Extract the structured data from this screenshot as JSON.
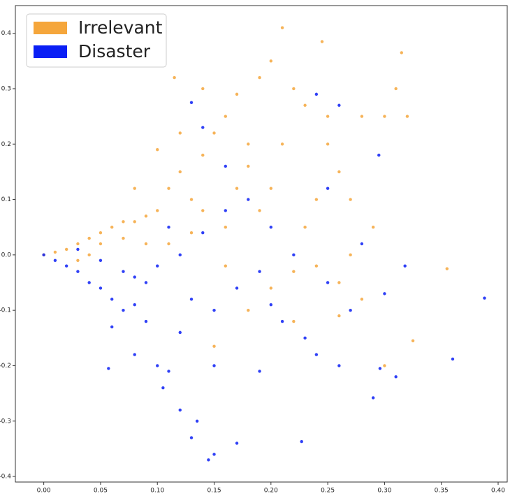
{
  "chart_data": {
    "type": "scatter",
    "xlim": [
      -0.025,
      0.408
    ],
    "ylim": [
      -0.41,
      0.45
    ],
    "xticks": [
      {
        "value": 0,
        "label": "0.00"
      },
      0.05,
      {
        "value": 0.1,
        "label": "0.10"
      },
      0.15,
      {
        "value": 0.2,
        "label": "0.20"
      },
      0.25,
      {
        "value": 0.3,
        "label": "0.30"
      },
      0.35,
      {
        "value": 0.4,
        "label": "0.40"
      }
    ],
    "yticks": [
      -0.4,
      -0.3,
      -0.2,
      -0.1,
      {
        "value": 0,
        "label": "0.0"
      },
      0.1,
      0.2,
      0.3,
      0.4
    ],
    "legend": "upper-left",
    "series": [
      {
        "name": "Irrelevant",
        "color": "#f5a63b",
        "x": [
          0.0,
          0.01,
          0.02,
          0.03,
          0.04,
          0.05,
          0.06,
          0.07,
          0.08,
          0.09,
          0.1,
          0.11,
          0.12,
          0.13,
          0.14,
          0.15,
          0.16,
          0.17,
          0.18,
          0.19,
          0.2,
          0.21,
          0.22,
          0.23,
          0.245,
          0.25,
          0.26,
          0.27,
          0.28,
          0.3,
          0.31,
          0.315,
          0.32,
          0.115,
          0.14,
          0.16,
          0.18,
          0.2,
          0.22,
          0.24,
          0.26,
          0.28,
          0.3,
          0.325,
          0.355,
          0.29,
          0.27,
          0.23,
          0.19,
          0.17,
          0.13,
          0.11,
          0.09,
          0.07,
          0.05,
          0.04,
          0.03,
          0.15,
          0.18,
          0.21,
          0.25,
          0.12,
          0.1,
          0.08,
          0.16,
          0.2,
          0.24,
          0.26,
          0.14,
          0.22
        ],
        "values": [
          0.0,
          0.005,
          0.01,
          0.02,
          0.03,
          0.04,
          0.05,
          0.03,
          0.06,
          0.02,
          0.08,
          0.12,
          0.15,
          0.1,
          0.18,
          0.22,
          0.25,
          0.29,
          0.2,
          0.32,
          0.35,
          0.41,
          0.3,
          0.27,
          0.385,
          0.25,
          0.15,
          0.1,
          0.25,
          0.25,
          0.3,
          0.365,
          0.25,
          0.32,
          0.3,
          -0.02,
          -0.1,
          -0.06,
          -0.03,
          -0.02,
          -0.05,
          -0.08,
          -0.2,
          -0.155,
          -0.025,
          0.05,
          0.0,
          0.05,
          0.08,
          0.12,
          0.04,
          0.02,
          0.07,
          0.06,
          0.02,
          0.0,
          -0.01,
          -0.165,
          0.16,
          0.2,
          0.2,
          0.22,
          0.19,
          0.12,
          0.05,
          0.12,
          0.1,
          -0.11,
          0.08,
          -0.12
        ]
      },
      {
        "name": "Disaster",
        "color": "#0a1ff5",
        "x": [
          0.0,
          0.01,
          0.02,
          0.03,
          0.04,
          0.05,
          0.06,
          0.07,
          0.08,
          0.09,
          0.1,
          0.105,
          0.11,
          0.12,
          0.13,
          0.135,
          0.145,
          0.15,
          0.17,
          0.19,
          0.227,
          0.24,
          0.26,
          0.29,
          0.296,
          0.31,
          0.36,
          0.388,
          0.318,
          0.295,
          0.24,
          0.26,
          0.13,
          0.14,
          0.16,
          0.18,
          0.2,
          0.22,
          0.25,
          0.27,
          0.06,
          0.057,
          0.08,
          0.09,
          0.11,
          0.12,
          0.13,
          0.15,
          0.17,
          0.19,
          0.21,
          0.23,
          0.14,
          0.1,
          0.07,
          0.05,
          0.03,
          0.16,
          0.2,
          0.25,
          0.28,
          0.3,
          0.15,
          0.12,
          0.08
        ],
        "values": [
          0.0,
          -0.01,
          -0.02,
          -0.03,
          -0.05,
          -0.06,
          -0.08,
          -0.1,
          -0.04,
          -0.12,
          -0.2,
          -0.24,
          -0.21,
          -0.28,
          -0.33,
          -0.3,
          -0.37,
          -0.36,
          -0.34,
          -0.21,
          -0.337,
          -0.18,
          -0.2,
          -0.258,
          -0.205,
          -0.22,
          -0.188,
          -0.078,
          -0.02,
          0.18,
          0.29,
          0.27,
          0.275,
          0.23,
          0.16,
          0.1,
          0.05,
          0.0,
          -0.05,
          -0.1,
          -0.13,
          -0.205,
          -0.18,
          -0.05,
          0.05,
          0.0,
          -0.08,
          -0.1,
          -0.06,
          -0.03,
          -0.12,
          -0.15,
          0.04,
          -0.02,
          -0.03,
          -0.01,
          0.01,
          0.08,
          -0.09,
          0.12,
          0.02,
          -0.07,
          -0.2,
          -0.14,
          -0.09
        ]
      }
    ]
  }
}
